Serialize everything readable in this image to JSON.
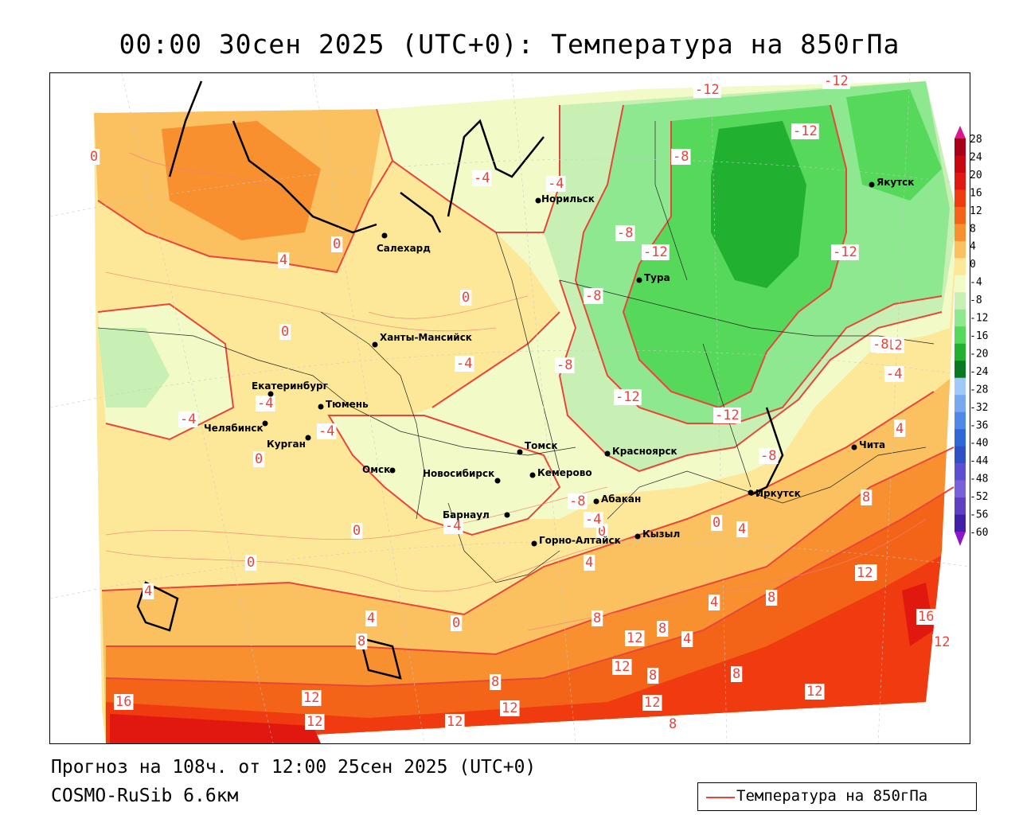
{
  "title": "00:00 30сен 2025 (UTC+0): Температура на 850гПа",
  "footer": {
    "forecast": "Прогноз на 108ч. от 12:00 25сен 2025 (UTC+0)",
    "model": "COSMO-RuSib 6.6км"
  },
  "legend": {
    "label": "Температура на 850гПа",
    "line_color": "#e8463a"
  },
  "colorbar": {
    "ticks": [
      "28",
      "24",
      "20",
      "16",
      "12",
      "8",
      "4",
      "0",
      "-4",
      "-8",
      "-12",
      "-16",
      "-20",
      "-24",
      "-28",
      "-32",
      "-36",
      "-40",
      "-44",
      "-48",
      "-52",
      "-56",
      "-60"
    ],
    "colors": [
      "#a8001a",
      "#c80810",
      "#e01810",
      "#f03a10",
      "#f46418",
      "#f89030",
      "#fbc060",
      "#fde89a",
      "#f2fac8",
      "#c8f0b4",
      "#8ee890",
      "#56d85a",
      "#22b030",
      "#0a7820",
      "#a0c8f8",
      "#78a8f0",
      "#5088e8",
      "#3068d8",
      "#3050c8",
      "#5a50d0",
      "#7a60d8",
      "#6040c0",
      "#4020a8"
    ],
    "top_arrow_color": "#d8188c",
    "bottom_arrow_color": "#8a18c8"
  },
  "cities": [
    {
      "name": "Салехард"
    },
    {
      "name": "Норильск"
    },
    {
      "name": "Якутск"
    },
    {
      "name": "Тура"
    },
    {
      "name": "Ханты-Мансийск"
    },
    {
      "name": "Екатеринбург"
    },
    {
      "name": "Тюмень"
    },
    {
      "name": "Челябинск"
    },
    {
      "name": "Курган"
    },
    {
      "name": "Омск"
    },
    {
      "name": "Новосибирск"
    },
    {
      "name": "Томск"
    },
    {
      "name": "Красноярск"
    },
    {
      "name": "Кемерово"
    },
    {
      "name": "Абакан"
    },
    {
      "name": "Барнаул"
    },
    {
      "name": "Горно-Алтайск"
    },
    {
      "name": "Кызыл"
    },
    {
      "name": "Иркутск"
    },
    {
      "name": "Чита"
    }
  ],
  "contour_labels": [
    "-12",
    "-12",
    "-12",
    "-8",
    "-12",
    "-4",
    "-8",
    "-12",
    "-12",
    "-8",
    "-8",
    "-12",
    "-12",
    "-8",
    "-4",
    "0",
    "-4",
    "-4",
    "0",
    "4",
    "0",
    "0",
    "-4",
    "-4",
    "0",
    "-4",
    "-8",
    "-4",
    "0",
    "4",
    "0",
    "0",
    "0",
    "4",
    "-8",
    "8",
    "4",
    "0",
    "4",
    "4",
    "12",
    "8",
    "8",
    "8",
    "12",
    "8",
    "4",
    "4",
    "8",
    "12",
    "8",
    "12",
    "12",
    "16",
    "12",
    "12",
    "12",
    "8",
    "12",
    "16",
    "12",
    "8",
    "-4",
    "-8",
    "4",
    "12"
  ]
}
